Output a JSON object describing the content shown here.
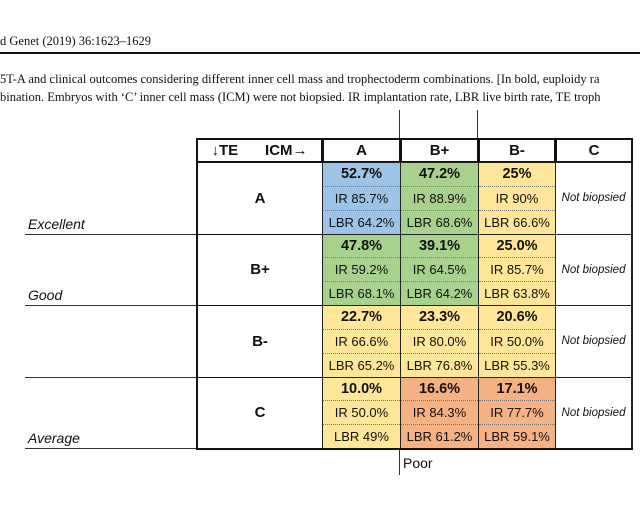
{
  "header": {
    "journal": "d Genet (2019) 36:1623–1629"
  },
  "caption": {
    "lines": [
      "5T-A and clinical outcomes considering different inner cell mass and trophectoderm combinations. [In bold, euploidy ra",
      "bination. Embryos with ‘C’ inner cell mass (ICM) were not biopsied. IR implantation rate, LBR live birth rate, TE troph"
    ]
  },
  "table": {
    "corner": [
      "↓TE",
      "ICM→"
    ],
    "columns": [
      "A",
      "B+",
      "B-",
      "C"
    ],
    "rows": [
      {
        "label": "A",
        "rating": "Excellent",
        "cells": [
          {
            "color": "#9dc3e6",
            "euploidy": "52.7%",
            "ir": "IR 85.7%",
            "lbr": "LBR 64.2%"
          },
          {
            "color": "#a9d18e",
            "euploidy": "47.2%",
            "ir": "IR 88.9%",
            "lbr": "LBR 68.6%"
          },
          {
            "color": "#ffe699",
            "euploidy": "25%",
            "ir": "IR 90%",
            "lbr": "LBR 66.6%"
          },
          {
            "color": "#ffffff",
            "text": "Not biopsied"
          }
        ]
      },
      {
        "label": "B+",
        "rating": "Good",
        "cells": [
          {
            "color": "#a9d18e",
            "euploidy": "47.8%",
            "ir": "IR 59.2%",
            "lbr": "LBR 68.1%"
          },
          {
            "color": "#a9d18e",
            "euploidy": "39.1%",
            "ir": "IR 64.5%",
            "lbr": "LBR 64.2%"
          },
          {
            "color": "#ffe699",
            "euploidy": "25.0%",
            "ir": "IR 85.7%",
            "lbr": "LBR 63.8%"
          },
          {
            "color": "#ffffff",
            "text": "Not biopsied"
          }
        ]
      },
      {
        "label": "B-",
        "cells": [
          {
            "color": "#ffe699",
            "euploidy": "22.7%",
            "ir": "IR 66.6%",
            "lbr": "LBR 65.2%"
          },
          {
            "color": "#ffe699",
            "euploidy": "23.3%",
            "ir": "IR 80.0%",
            "lbr": "LBR 76.8%"
          },
          {
            "color": "#ffe699",
            "euploidy": "20.6%",
            "ir": "IR 50.0%",
            "lbr": "LBR 55.3%"
          },
          {
            "color": "#ffffff",
            "text": "Not biopsied"
          }
        ]
      },
      {
        "label": "C",
        "rating": "Average",
        "cells": [
          {
            "color": "#ffe699",
            "euploidy": "10.0%",
            "ir": "IR 50.0%",
            "lbr": "LBR 49%"
          },
          {
            "color": "#f4b183",
            "euploidy": "16.6%",
            "ir": "IR 84.3%",
            "lbr": "LBR 61.2%"
          },
          {
            "color": "#f4b183",
            "euploidy": "17.1%",
            "ir": "IR 77.7%",
            "lbr": "LBR 59.1%"
          },
          {
            "color": "#ffffff",
            "text": "Not biopsied"
          }
        ]
      }
    ]
  },
  "bottom_label": "Poor"
}
